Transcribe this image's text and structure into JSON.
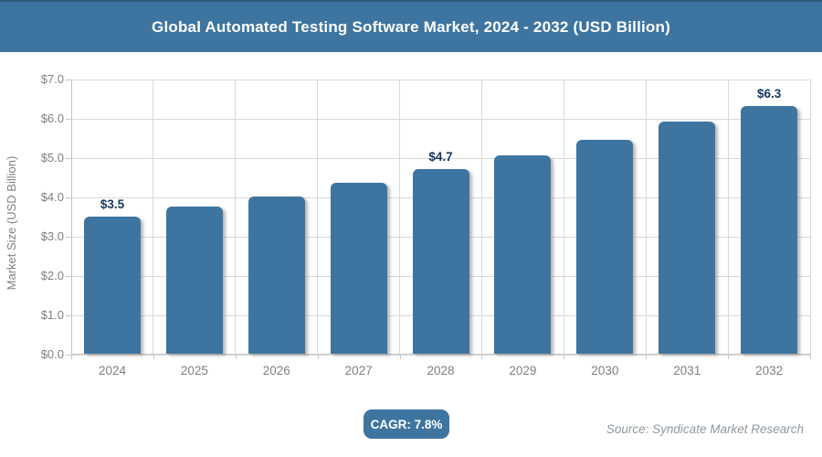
{
  "colors": {
    "accent_blue": "#3e75a0",
    "header_top_border": "#2c5878",
    "bar_label_navy": "#17375d",
    "axis_text_gray": "#7f7f7f",
    "gridline_gray": "#d9d9d9",
    "source_gray": "#8f979c"
  },
  "header": {
    "title": "Global Automated Testing Software Market, 2024 - 2032 (USD Billion)"
  },
  "chart_data": {
    "type": "bar",
    "title": "Global Automated Testing Software Market, 2024 - 2032 (USD Billion)",
    "categories": [
      "2024",
      "2025",
      "2026",
      "2027",
      "2028",
      "2029",
      "2030",
      "2031",
      "2032"
    ],
    "values": [
      3.5,
      3.75,
      4.0,
      4.35,
      4.7,
      5.05,
      5.45,
      5.9,
      6.3
    ],
    "bar_labels": [
      "$3.5",
      "",
      "",
      "",
      "$4.7",
      "",
      "",
      "",
      "$6.3"
    ],
    "xlabel": "",
    "ylabel": "Market Size (USD Billion)",
    "ylim": [
      0,
      7
    ],
    "ytick_step": 1,
    "ytick_labels": [
      "$0.0",
      "$1.0",
      "$2.0",
      "$3.0",
      "$4.0",
      "$5.0",
      "$6.0",
      "$7.0"
    ],
    "grid": true,
    "legend": "none"
  },
  "footer": {
    "cagr_badge": "CAGR: 7.8%",
    "source": "Source: Syndicate Market Research"
  }
}
